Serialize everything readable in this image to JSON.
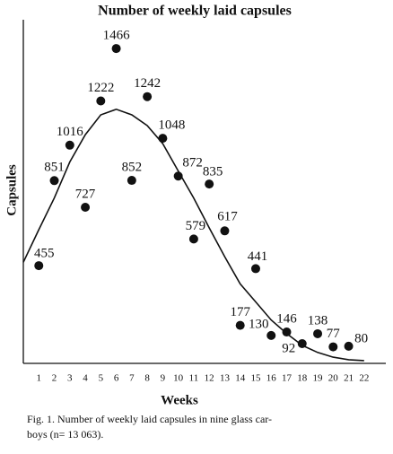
{
  "chart_data": {
    "type": "scatter",
    "title": "Number of weekly laid capsules",
    "x_label": "Weeks",
    "y_label": "Capsules",
    "x": [
      1,
      2,
      3,
      4,
      5,
      6,
      7,
      8,
      9,
      10,
      11,
      12,
      13,
      14,
      15,
      16,
      17,
      18,
      19,
      20,
      21
    ],
    "values": [
      455,
      851,
      1016,
      727,
      1222,
      1466,
      852,
      1242,
      1048,
      872,
      579,
      835,
      617,
      177,
      441,
      130,
      146,
      92,
      138,
      77,
      80
    ],
    "color": "#111111",
    "curve": {
      "x": [
        0,
        1,
        2,
        3,
        4,
        5,
        6,
        7,
        8,
        9,
        10,
        11,
        12,
        13,
        14,
        15,
        16,
        17,
        18,
        19,
        20,
        21,
        22
      ],
      "values": [
        471,
        623,
        770,
        938,
        1065,
        1157,
        1183,
        1157,
        1107,
        1023,
        896,
        770,
        631,
        497,
        370,
        286,
        202,
        139,
        84,
        51,
        29,
        17,
        13
      ]
    },
    "xlim": [
      0,
      23.4
    ],
    "ylim": [
      0,
      1600
    ],
    "xticks": [
      1,
      2,
      3,
      4,
      5,
      6,
      7,
      8,
      9,
      10,
      11,
      12,
      13,
      14,
      15,
      16,
      17,
      18,
      19,
      20,
      21,
      22
    ],
    "caption": [
      "Fig. 1.  Number of weekly laid capsules in nine glass car-",
      "boys (n= 13 063)."
    ]
  }
}
